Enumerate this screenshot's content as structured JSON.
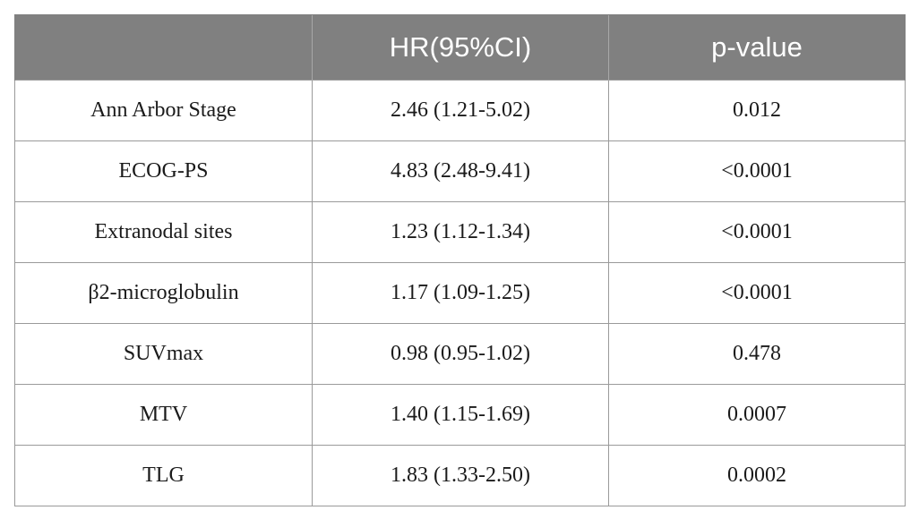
{
  "table": {
    "headers": [
      "",
      "HR(95%CI)",
      "p-value"
    ],
    "rows": [
      {
        "variable": "Ann Arbor Stage",
        "hr": "2.46 (1.21-5.02)",
        "p": "0.012"
      },
      {
        "variable": "ECOG-PS",
        "hr": "4.83 (2.48-9.41)",
        "p": "<0.0001"
      },
      {
        "variable": "Extranodal sites",
        "hr": "1.23 (1.12-1.34)",
        "p": "<0.0001"
      },
      {
        "variable": "β2-microglobulin",
        "hr": "1.17 (1.09-1.25)",
        "p": "<0.0001"
      },
      {
        "variable": "SUVmax",
        "hr": "0.98 (0.95-1.02)",
        "p": "0.478"
      },
      {
        "variable": "MTV",
        "hr": "1.40 (1.15-1.69)",
        "p": "0.0007"
      },
      {
        "variable": "TLG",
        "hr": "1.83 (1.33-2.50)",
        "p": "0.0002"
      }
    ]
  }
}
